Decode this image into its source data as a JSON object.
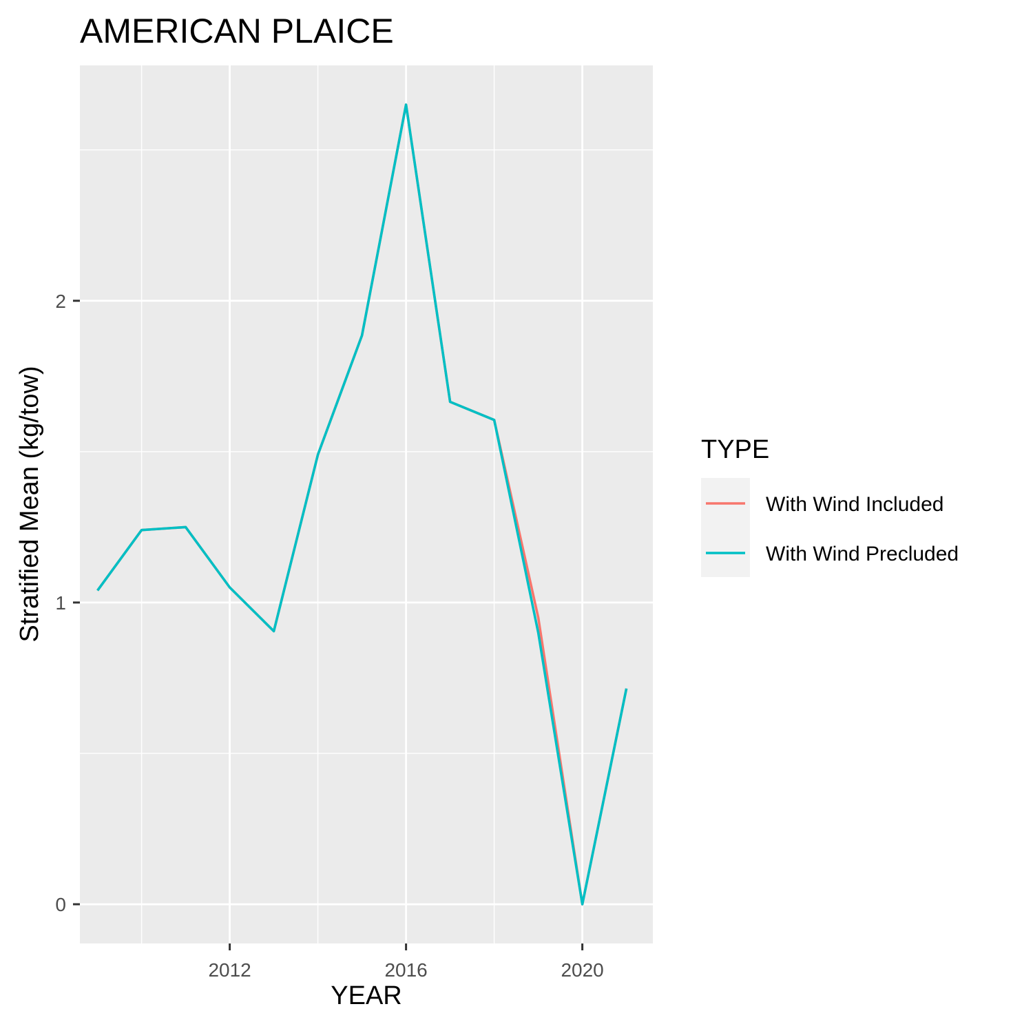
{
  "chart_data": {
    "type": "line",
    "title": "AMERICAN PLAICE",
    "xlabel": "YEAR",
    "ylabel": "Stratified Mean (kg/tow)",
    "xlim": [
      2008.6,
      2021.6
    ],
    "ylim": [
      -0.13,
      2.78
    ],
    "x_ticks": [
      2012,
      2016,
      2020
    ],
    "x_minor_ticks": [
      2010,
      2014,
      2018
    ],
    "y_ticks": [
      0,
      1,
      2
    ],
    "y_minor_ticks": [
      0.5,
      1.5,
      2.5
    ],
    "grid": true,
    "legend": {
      "title": "TYPE",
      "position": "right"
    },
    "x": [
      2009,
      2010,
      2011,
      2012,
      2013,
      2014,
      2015,
      2016,
      2017,
      2018,
      2019,
      2020,
      2021
    ],
    "series": [
      {
        "name": "With Wind Included",
        "color": "#F8766D",
        "values": [
          1.04,
          1.24,
          1.25,
          1.05,
          0.905,
          1.49,
          1.885,
          2.65,
          1.665,
          1.605,
          0.95,
          0.0,
          0.715
        ]
      },
      {
        "name": "With Wind Precluded",
        "color": "#00BFC4",
        "values": [
          1.04,
          1.24,
          1.25,
          1.05,
          0.905,
          1.49,
          1.885,
          2.65,
          1.665,
          1.605,
          0.9,
          0.0,
          0.715
        ]
      }
    ]
  }
}
